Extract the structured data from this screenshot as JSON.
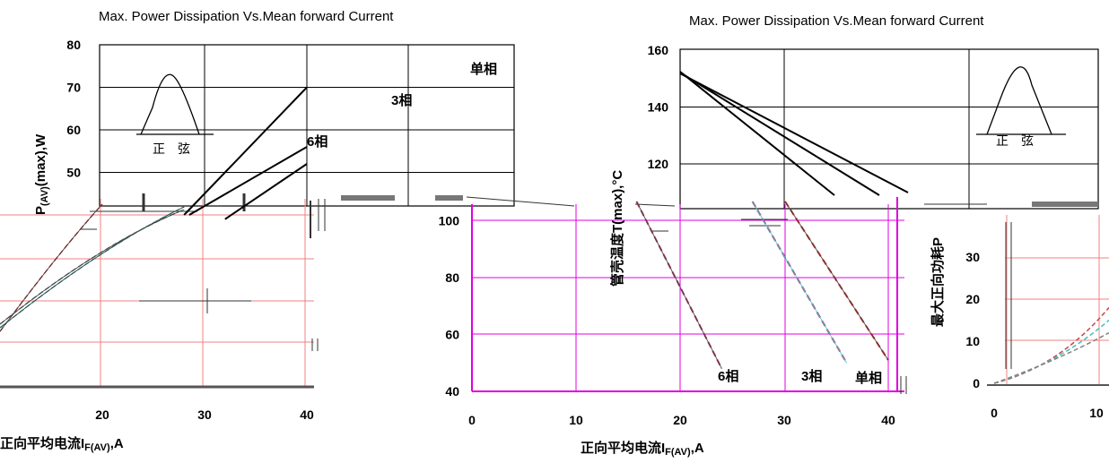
{
  "chart_data": [
    {
      "id": "power_vs_current",
      "type": "line",
      "title": "Max. Power Dissipation Vs.Mean forward Current",
      "xlabel": "正向平均电流I",
      "xlabel_sub": "F(AV)",
      "xlabel_tail": ",A",
      "ylabel": "P",
      "ylabel_sub": "(AV)",
      "ylabel_tail": "(max),W",
      "x_ticks": [
        "20",
        "30",
        "40"
      ],
      "y_ticks": [
        "80",
        "70",
        "60",
        "50"
      ],
      "xlim": [
        10,
        40
      ],
      "ylim": [
        40,
        80
      ],
      "waveform_label": "正　弦",
      "series": [
        {
          "name": "6相",
          "x": [
            28.5,
            40
          ],
          "y": [
            40,
            56
          ]
        },
        {
          "name": "3相",
          "x": [
            32,
            40
          ],
          "y": [
            39,
            52
          ]
        },
        {
          "name": "单相",
          "x": [
            28,
            40
          ],
          "y": [
            40,
            70
          ]
        }
      ],
      "fragments_series": [
        {
          "x": [
            10,
            20
          ],
          "y": [
            20,
            42
          ]
        },
        {
          "x": [
            10,
            28
          ],
          "y": [
            15,
            42
          ]
        },
        {
          "x": [
            10,
            28
          ],
          "y": [
            12,
            41
          ]
        }
      ]
    },
    {
      "id": "case_temp_vs_current",
      "type": "line",
      "title": "Max. Power Dissipation Vs.Mean forward Current",
      "xlabel": "正向平均电流I",
      "xlabel_sub": "F(AV)",
      "xlabel_tail": ",A",
      "ylabel": "管壳温度T",
      "ylabel_tail": "(max),°C",
      "x_ticks": [
        "0",
        "10",
        "20",
        "30",
        "40"
      ],
      "y_ticks": [
        "160",
        "140",
        "120",
        "100",
        "80",
        "60",
        "40"
      ],
      "xlim": [
        0,
        40
      ],
      "ylim": [
        40,
        160
      ],
      "waveform_label": "正　弦",
      "series": [
        {
          "name": "6相",
          "x": [
            0,
            24
          ],
          "y": [
            151,
            48
          ]
        },
        {
          "name": "3相",
          "x": [
            0,
            36
          ],
          "y": [
            151,
            50
          ]
        },
        {
          "name": "单相",
          "x": [
            0,
            40
          ],
          "y": [
            151,
            51
          ]
        }
      ]
    },
    {
      "id": "partial_power_chart",
      "type": "line",
      "ylabel": "最大正向功耗P",
      "x_ticks": [
        "0",
        "10"
      ],
      "y_ticks": [
        "30",
        "20",
        "10",
        "0"
      ],
      "xlim": [
        0,
        12
      ],
      "ylim": [
        0,
        40
      ],
      "series": [
        {
          "x": [
            0,
            12
          ],
          "y": [
            0,
            18
          ]
        },
        {
          "x": [
            0,
            12
          ],
          "y": [
            0,
            15
          ]
        },
        {
          "x": [
            0,
            12
          ],
          "y": [
            0,
            12
          ]
        }
      ]
    }
  ]
}
